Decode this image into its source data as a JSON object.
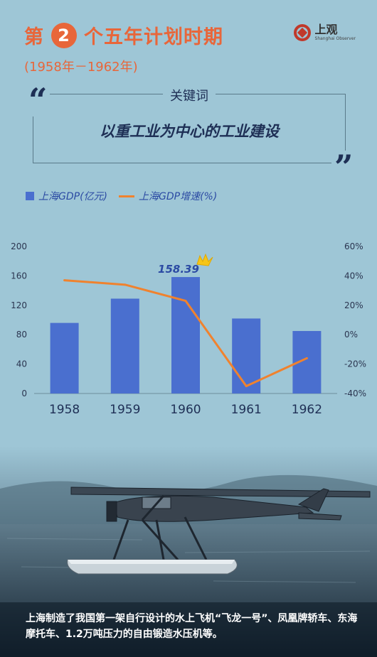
{
  "header": {
    "title_prefix": "第",
    "title_number": "2",
    "title_suffix": "个五年计划时期",
    "subtitle": "(1958年－1962年)",
    "logo_cn": "上观",
    "logo_en": "Shanghai Observer"
  },
  "keyword": {
    "label": "关键词",
    "text": "以重工业为中心的工业建设",
    "quote_open": "“",
    "quote_close": "”"
  },
  "legend": {
    "bar_label": "上海GDP(亿元)",
    "line_label": "上海GDP增速(%)"
  },
  "colors": {
    "bar": "#4a6fcf",
    "line": "#f0822e",
    "accent": "#e8663a",
    "navy": "#1e2f55"
  },
  "chart_data": {
    "type": "bar",
    "categories": [
      "1958",
      "1959",
      "1960",
      "1961",
      "1962"
    ],
    "series": [
      {
        "name": "上海GDP(亿元)",
        "type": "bar",
        "axis": "left",
        "values": [
          96,
          129,
          158.39,
          102,
          85
        ]
      },
      {
        "name": "上海GDP增速(%)",
        "type": "line",
        "axis": "right",
        "values": [
          37,
          34,
          23,
          -35,
          -16
        ]
      }
    ],
    "left_axis": {
      "ylim": [
        0,
        200
      ],
      "ticks": [
        "0",
        "40",
        "80",
        "120",
        "160",
        "200"
      ]
    },
    "right_axis": {
      "ylim": [
        -40,
        60
      ],
      "ticks": [
        "-40%",
        "-20%",
        "0%",
        "20%",
        "40%",
        "60%"
      ]
    },
    "highlight_label": "158.39",
    "highlight_index": 2
  },
  "caption": "上海制造了我国第一架自行设计的水上飞机“飞龙一号”、凤凰牌轿车、东海摩托车、1.2万吨压力的自由锻造水压机等。"
}
